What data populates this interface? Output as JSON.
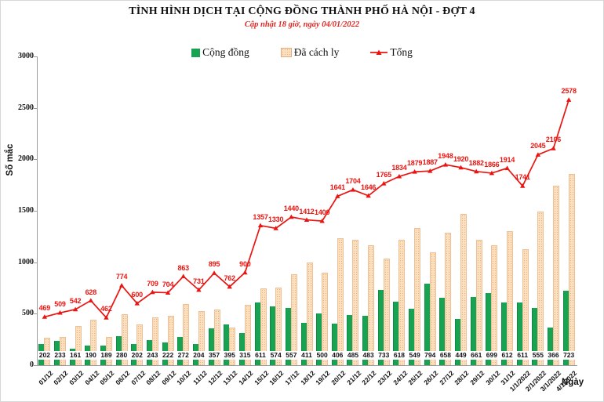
{
  "title": "TÌNH HÌNH DỊCH TẠI CỘNG ĐỒNG THÀNH PHỐ HÀ NỘI - ĐỢT 4",
  "subtitle": "Cập nhật 18 giờ, ngày 04/01/2022",
  "colors": {
    "community_green": "#17a351",
    "quarantine_tan": "#fbe0c0",
    "quarantine_dot": "#efae7c",
    "total_red": "#ea1410",
    "subtitle_red": "#e02621"
  },
  "legend": [
    {
      "label": "Cộng đồng",
      "swatch": "green-square"
    },
    {
      "label": "Đã cách ly",
      "swatch": "tan-pattern-square"
    },
    {
      "label": "Tổng",
      "swatch": "red-line-marker"
    }
  ],
  "chart_data": {
    "type": "bar+line",
    "title": "TÌNH HÌNH DỊCH TẠI CỘNG ĐỒNG THÀNH PHỐ HÀ NỘI - ĐỢT 4",
    "subtitle": "Cập nhật 18 giờ, ngày 04/01/2022",
    "xlabel": "Ngày",
    "ylabel": "Số mắc",
    "ylim": [
      0,
      3000
    ],
    "yticks": [
      0,
      500,
      1000,
      1500,
      2000,
      2500,
      3000
    ],
    "grid": false,
    "legend_position": "top",
    "categories": [
      "01/12",
      "02/12",
      "03/12",
      "04/12",
      "05/12",
      "06/12",
      "07/12",
      "08/12",
      "09/12",
      "10/12",
      "11/12",
      "12/12",
      "13/12",
      "14/12",
      "15/12",
      "16/12",
      "17/12",
      "18/12",
      "19/12",
      "20/12",
      "21/12",
      "22/12",
      "23/12",
      "24/12",
      "25/12",
      "26/12",
      "27/12",
      "28/12",
      "29/12",
      "30/12",
      "31/12",
      "1/1/2022",
      "2/1/2022",
      "3/1/2022",
      "4/1/2022"
    ],
    "series": [
      {
        "name": "Cộng đồng",
        "type": "bar",
        "color": "#17a351",
        "data_labels": true,
        "values": [
          202,
          233,
          161,
          190,
          189,
          280,
          202,
          243,
          222,
          272,
          204,
          357,
          395,
          315,
          611,
          574,
          557,
          411,
          500,
          406,
          485,
          483,
          733,
          618,
          549,
          794,
          658,
          449,
          661,
          699,
          612,
          611,
          555,
          366,
          723
        ]
      },
      {
        "name": "Đã cách ly",
        "type": "bar",
        "color": "#fbe0c0",
        "data_labels": false,
        "values": [
          267,
          276,
          381,
          438,
          273,
          494,
          398,
          466,
          482,
          591,
          527,
          538,
          367,
          585,
          746,
          756,
          883,
          1001,
          900,
          1235,
          1219,
          1163,
          1032,
          1216,
          1330,
          1093,
          1290,
          1471,
          1221,
          1167,
          1302,
          1130,
          1490,
          1740,
          1855
        ]
      },
      {
        "name": "Tổng",
        "type": "line",
        "color": "#ea1410",
        "marker": "triangle",
        "data_labels": true,
        "values": [
          469,
          509,
          542,
          628,
          462,
          774,
          600,
          709,
          704,
          863,
          731,
          895,
          762,
          900,
          1357,
          1330,
          1440,
          1412,
          1400,
          1641,
          1704,
          1646,
          1765,
          1834,
          1879,
          1887,
          1948,
          1920,
          1882,
          1866,
          1914,
          1741,
          2045,
          2106,
          2578
        ]
      }
    ]
  }
}
